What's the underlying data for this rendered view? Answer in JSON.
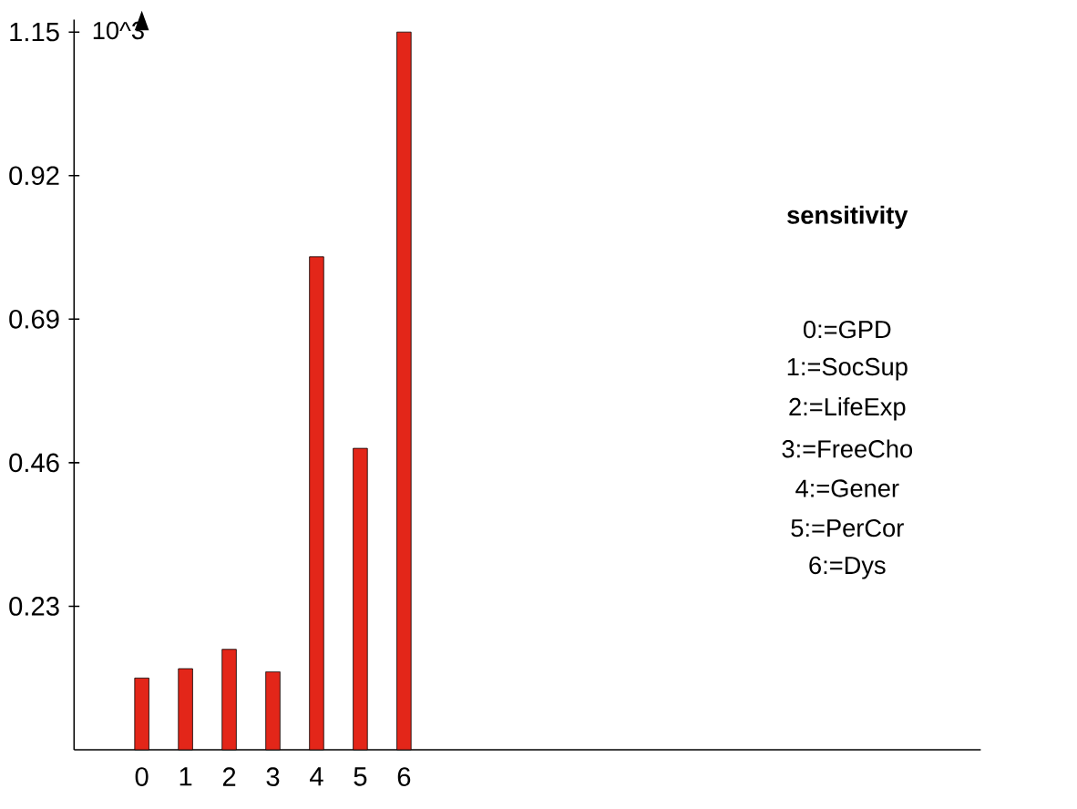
{
  "chart_data": {
    "type": "bar",
    "title": "sensitivity",
    "ylabel": "10^3",
    "categories": [
      "0",
      "1",
      "2",
      "3",
      "4",
      "5",
      "6"
    ],
    "values": [
      0.115,
      0.13,
      0.161,
      0.125,
      0.79,
      0.483,
      1.15
    ],
    "color": "#e32619",
    "ylim": [
      0,
      1.17
    ],
    "yticks": [
      0.23,
      0.46,
      0.69,
      0.92,
      1.15
    ],
    "annotations": [
      "0:=GPD",
      "1:=SocSup",
      "2:=LifeExp",
      "3:=FreeCho",
      "4:=Gener",
      "5:=PerCor",
      "6:=Dys"
    ]
  }
}
